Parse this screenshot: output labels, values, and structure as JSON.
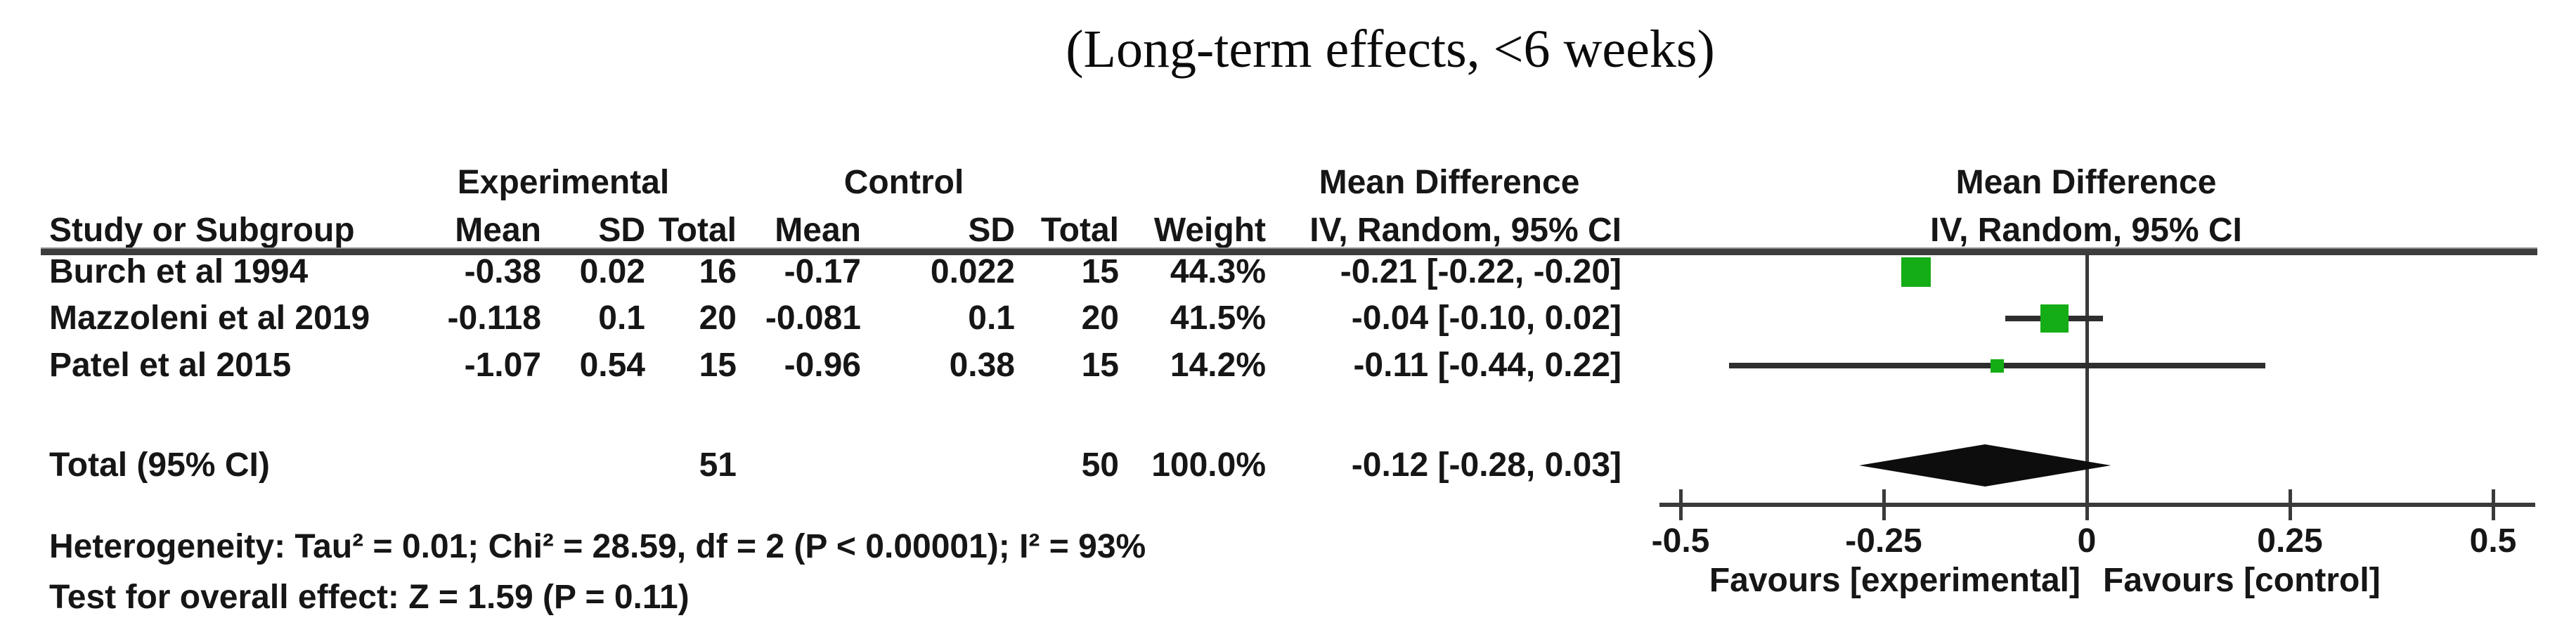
{
  "title": "(Long-term effects, <6 weeks)",
  "table": {
    "group_headers": {
      "experimental": "Experimental",
      "control": "Control",
      "mean_difference": "Mean Difference"
    },
    "col_headers": {
      "study": "Study or Subgroup",
      "mean": "Mean",
      "sd": "SD",
      "total": "Total",
      "weight": "Weight",
      "iv": "IV, Random, 95% CI"
    },
    "rows": [
      {
        "cells": [
          "Burch et al 1994",
          "-0.38",
          "0.02",
          "16",
          "-0.17",
          "0.022",
          "15",
          "44.3%",
          "-0.21 [-0.22, -0.20]"
        ]
      },
      {
        "cells": [
          "Mazzoleni et al 2019",
          "-0.118",
          "0.1",
          "20",
          "-0.081",
          "0.1",
          "20",
          "41.5%",
          "-0.04 [-0.10, 0.02]"
        ]
      },
      {
        "cells": [
          "Patel et al 2015",
          "-1.07",
          "0.54",
          "15",
          "-0.96",
          "0.38",
          "15",
          "14.2%",
          "-0.11 [-0.44, 0.22]"
        ]
      }
    ],
    "total_row": {
      "label": "Total (95% CI)",
      "exp_total": "51",
      "ctrl_total": "50",
      "weight": "100.0%",
      "ci": "-0.12 [-0.28, 0.03]"
    },
    "heterogeneity": "Heterogeneity: Tau² = 0.01; Chi² = 28.59, df = 2 (P < 0.00001); I² = 93%",
    "overall_effect": "Test for overall effect: Z = 1.59 (P = 0.11)"
  },
  "plot": {
    "header_line1": "Mean Difference",
    "header_line2": "IV, Random, 95% CI",
    "favours_left": "Favours [experimental]",
    "favours_right": "Favours [control]",
    "tick_labels": [
      "-0.5",
      "-0.25",
      "0",
      "0.25",
      "0.5"
    ]
  },
  "colors": {
    "marker_green": "#15ad15",
    "line_dark": "#2e2e2e",
    "diamond_black": "#0d0d0d"
  },
  "chart_data": {
    "type": "forest",
    "title": "(Long-term effects, <6 weeks)",
    "effect_measure": "Mean Difference, IV, Random, 95% CI",
    "xlim": [
      -0.5,
      0.5
    ],
    "x_ticks": [
      -0.5,
      -0.25,
      0,
      0.25,
      0.5
    ],
    "studies": [
      {
        "name": "Burch et al 1994",
        "exp_mean": -0.38,
        "exp_sd": 0.02,
        "exp_total": 16,
        "ctrl_mean": -0.17,
        "ctrl_sd": 0.022,
        "ctrl_total": 15,
        "weight_pct": 44.3,
        "md": -0.21,
        "ci_low": -0.22,
        "ci_high": -0.2
      },
      {
        "name": "Mazzoleni et al 2019",
        "exp_mean": -0.118,
        "exp_sd": 0.1,
        "exp_total": 20,
        "ctrl_mean": -0.081,
        "ctrl_sd": 0.1,
        "ctrl_total": 20,
        "weight_pct": 41.5,
        "md": -0.04,
        "ci_low": -0.1,
        "ci_high": 0.02
      },
      {
        "name": "Patel et al 2015",
        "exp_mean": -1.07,
        "exp_sd": 0.54,
        "exp_total": 15,
        "ctrl_mean": -0.96,
        "ctrl_sd": 0.38,
        "ctrl_total": 15,
        "weight_pct": 14.2,
        "md": -0.11,
        "ci_low": -0.44,
        "ci_high": 0.22
      }
    ],
    "pooled": {
      "name": "Total (95% CI)",
      "exp_total": 51,
      "ctrl_total": 50,
      "weight_pct": 100.0,
      "md": -0.12,
      "ci_low": -0.28,
      "ci_high": 0.03
    },
    "heterogeneity": {
      "tau2": 0.01,
      "chi2": 28.59,
      "df": 2,
      "p": "< 0.00001",
      "i2_pct": 93
    },
    "overall_effect": {
      "z": 1.59,
      "p": 0.11
    },
    "favours": [
      "Favours [experimental]",
      "Favours [control]"
    ]
  }
}
